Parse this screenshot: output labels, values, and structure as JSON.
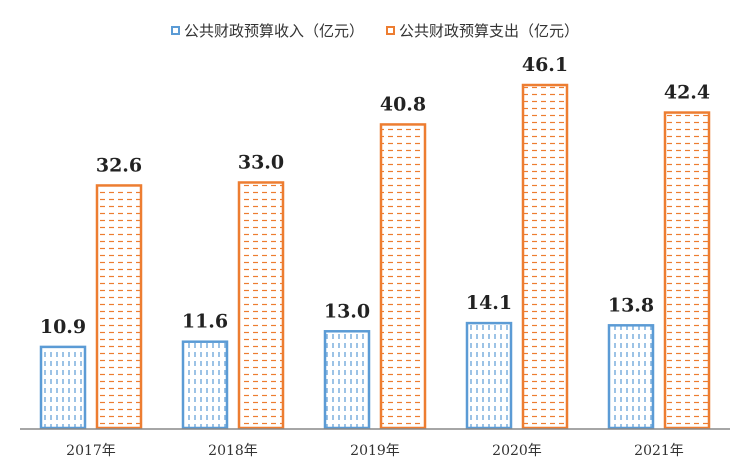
{
  "chart_data": {
    "type": "bar",
    "title": "",
    "xlabel": "",
    "ylabel": "",
    "categories": [
      "2017年",
      "2018年",
      "2019年",
      "2020年",
      "2021年"
    ],
    "series": [
      {
        "name": "公共财政预算收入（亿元）",
        "values": [
          10.9,
          11.6,
          13.0,
          14.1,
          13.8
        ],
        "color": "#5b9bd5"
      },
      {
        "name": "公共财政预算支出（亿元）",
        "values": [
          32.6,
          33.0,
          40.8,
          46.1,
          42.4
        ],
        "color": "#ed7d31"
      }
    ],
    "ylim": [
      0,
      50
    ],
    "grid": false,
    "legend": "top",
    "data_labels": true
  }
}
